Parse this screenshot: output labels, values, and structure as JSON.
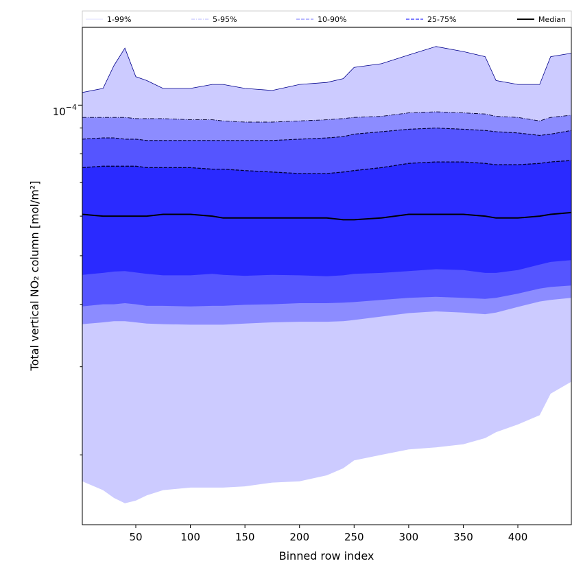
{
  "chart_data": {
    "type": "area",
    "title": "",
    "xlabel": "Binned row index",
    "ylabel": "Total vertical NO₂ column [mol/m²]",
    "y_scale": "log",
    "xlim": [
      1,
      449
    ],
    "ylim": [
      1.45e-05,
      0.000143
    ],
    "x_ticks": [
      50,
      100,
      150,
      200,
      250,
      300,
      350,
      400
    ],
    "y_tick_label": {
      "base": "10",
      "exponent": "−4",
      "value": 0.0001
    },
    "grid": false,
    "legend_position": "top",
    "colors": {
      "band_1_99": "#cccbff",
      "band_5_95": "#8c8cff",
      "band_10_90": "#5555ff",
      "band_25_75": "#2a2aff",
      "median": "#000000",
      "upper_99_line": "#00008b",
      "legend_1_99": "#dcdcff",
      "legend_5_95": "#b4b4ff",
      "legend_10_90": "#8c8cff",
      "legend_25_75": "#5050ff"
    },
    "legend": [
      {
        "key": "p1_99",
        "label": "1-99%",
        "style": "solid"
      },
      {
        "key": "p5_95",
        "label": "5-95%",
        "style": "dashdot"
      },
      {
        "key": "p10_90",
        "label": "10-90%",
        "style": "dashed"
      },
      {
        "key": "p25_75",
        "label": "25-75%",
        "style": "dashed"
      },
      {
        "key": "median",
        "label": "Median",
        "style": "solid"
      }
    ],
    "x": [
      1,
      20,
      30,
      40,
      50,
      60,
      75,
      100,
      120,
      130,
      150,
      175,
      200,
      225,
      240,
      250,
      275,
      300,
      325,
      350,
      370,
      380,
      400,
      420,
      430,
      449
    ],
    "series": [
      {
        "name": "1-99%",
        "percentile": "p99",
        "values": [
          0.000106,
          0.000108,
          0.00012,
          0.00013,
          0.000114,
          0.000112,
          0.000108,
          0.000108,
          0.00011,
          0.00011,
          0.000108,
          0.000107,
          0.00011,
          0.000111,
          0.000113,
          0.000119,
          0.000121,
          0.000126,
          0.000131,
          0.000128,
          0.000125,
          0.000112,
          0.00011,
          0.00011,
          0.000125,
          0.000127
        ]
      },
      {
        "name": "",
        "percentile": "p95",
        "values": [
          9.45e-05,
          9.45e-05,
          9.45e-05,
          9.45e-05,
          9.4e-05,
          9.4e-05,
          9.4e-05,
          9.35e-05,
          9.35e-05,
          9.3e-05,
          9.25e-05,
          9.25e-05,
          9.3e-05,
          9.35e-05,
          9.4e-05,
          9.45e-05,
          9.5e-05,
          9.65e-05,
          9.7e-05,
          9.65e-05,
          9.6e-05,
          9.5e-05,
          9.45e-05,
          9.3e-05,
          9.45e-05,
          9.55e-05
        ]
      },
      {
        "name": "",
        "percentile": "p90",
        "values": [
          8.55e-05,
          8.6e-05,
          8.6e-05,
          8.55e-05,
          8.55e-05,
          8.5e-05,
          8.5e-05,
          8.5e-05,
          8.5e-05,
          8.5e-05,
          8.5e-05,
          8.5e-05,
          8.55e-05,
          8.6e-05,
          8.65e-05,
          8.75e-05,
          8.85e-05,
          8.95e-05,
          9e-05,
          8.95e-05,
          8.9e-05,
          8.85e-05,
          8.8e-05,
          8.7e-05,
          8.75e-05,
          8.9e-05
        ]
      },
      {
        "name": "",
        "percentile": "p75",
        "values": [
          7.5e-05,
          7.55e-05,
          7.55e-05,
          7.55e-05,
          7.55e-05,
          7.5e-05,
          7.5e-05,
          7.5e-05,
          7.45e-05,
          7.45e-05,
          7.4e-05,
          7.35e-05,
          7.3e-05,
          7.3e-05,
          7.35e-05,
          7.4e-05,
          7.5e-05,
          7.65e-05,
          7.7e-05,
          7.7e-05,
          7.65e-05,
          7.6e-05,
          7.6e-05,
          7.65e-05,
          7.7e-05,
          7.75e-05
        ]
      },
      {
        "name": "Median",
        "percentile": "p50",
        "values": [
          6.05e-05,
          6e-05,
          6e-05,
          6e-05,
          6e-05,
          6e-05,
          6.05e-05,
          6.05e-05,
          6e-05,
          5.95e-05,
          5.95e-05,
          5.95e-05,
          5.95e-05,
          5.95e-05,
          5.9e-05,
          5.9e-05,
          5.95e-05,
          6.05e-05,
          6.05e-05,
          6.05e-05,
          6e-05,
          5.95e-05,
          5.95e-05,
          6e-05,
          6.05e-05,
          6.1e-05
        ]
      },
      {
        "name": "",
        "percentile": "p25",
        "values": [
          4.58e-05,
          4.62e-05,
          4.65e-05,
          4.66e-05,
          4.63e-05,
          4.6e-05,
          4.57e-05,
          4.57e-05,
          4.6e-05,
          4.58e-05,
          4.56e-05,
          4.58e-05,
          4.57e-05,
          4.55e-05,
          4.57e-05,
          4.6e-05,
          4.62e-05,
          4.66e-05,
          4.7e-05,
          4.68e-05,
          4.62e-05,
          4.62e-05,
          4.68e-05,
          4.8e-05,
          4.86e-05,
          4.9e-05
        ]
      },
      {
        "name": "",
        "percentile": "p10",
        "values": [
          3.96e-05,
          4e-05,
          4e-05,
          4.02e-05,
          4e-05,
          3.97e-05,
          3.97e-05,
          3.96e-05,
          3.97e-05,
          3.97e-05,
          3.99e-05,
          4e-05,
          4.02e-05,
          4.02e-05,
          4.03e-05,
          4.04e-05,
          4.08e-05,
          4.12e-05,
          4.14e-05,
          4.12e-05,
          4.1e-05,
          4.12e-05,
          4.2e-05,
          4.3e-05,
          4.33e-05,
          4.36e-05
        ]
      },
      {
        "name": "",
        "percentile": "p5",
        "values": [
          3.65e-05,
          3.68e-05,
          3.7e-05,
          3.7e-05,
          3.68e-05,
          3.66e-05,
          3.65e-05,
          3.64e-05,
          3.64e-05,
          3.64e-05,
          3.66e-05,
          3.68e-05,
          3.69e-05,
          3.69e-05,
          3.7e-05,
          3.72e-05,
          3.78e-05,
          3.84e-05,
          3.87e-05,
          3.85e-05,
          3.82e-05,
          3.85e-05,
          3.95e-05,
          4.05e-05,
          4.08e-05,
          4.12e-05
        ]
      },
      {
        "name": "",
        "percentile": "p1",
        "values": [
          1.77e-05,
          1.7e-05,
          1.64e-05,
          1.6e-05,
          1.62e-05,
          1.66e-05,
          1.7e-05,
          1.72e-05,
          1.72e-05,
          1.72e-05,
          1.73e-05,
          1.76e-05,
          1.77e-05,
          1.82e-05,
          1.88e-05,
          1.95e-05,
          2e-05,
          2.05e-05,
          2.07e-05,
          2.1e-05,
          2.16e-05,
          2.22e-05,
          2.3e-05,
          2.4e-05,
          2.65e-05,
          2.8e-05
        ]
      }
    ]
  }
}
